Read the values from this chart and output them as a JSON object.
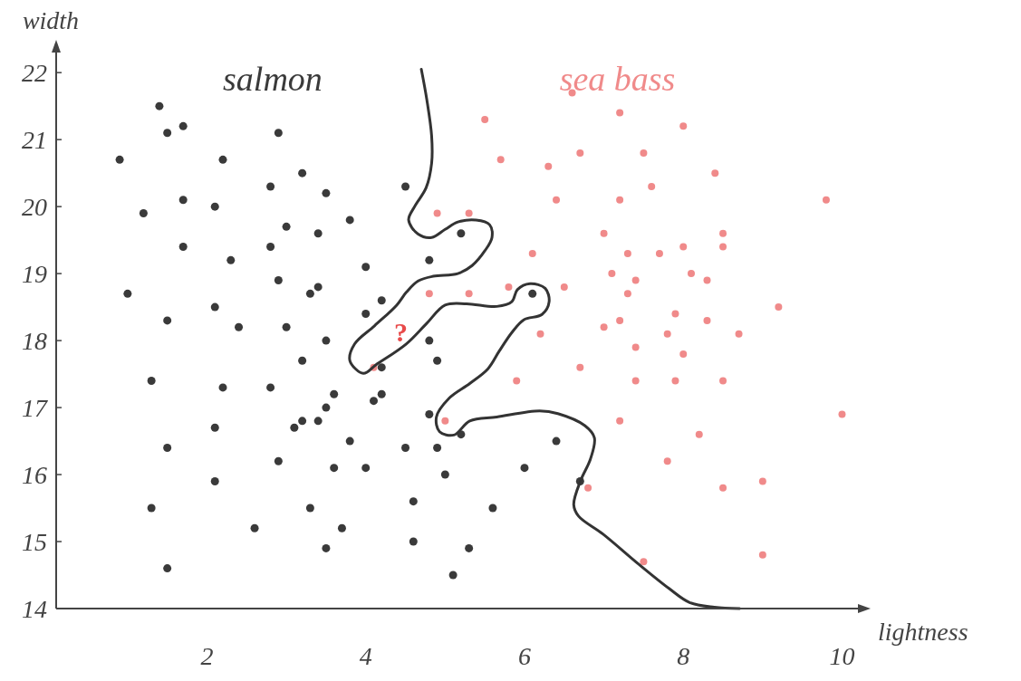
{
  "chart_data": {
    "type": "scatter",
    "xlabel": "lightness",
    "ylabel": "width",
    "xlim": [
      0.1,
      10.2
    ],
    "ylim": [
      14,
      22.3
    ],
    "xticks": [
      2,
      4,
      6,
      8,
      10
    ],
    "yticks": [
      14,
      15,
      16,
      17,
      18,
      19,
      20,
      21,
      22
    ],
    "grid": false,
    "legend": "top",
    "annotations": [
      "?"
    ],
    "series": [
      {
        "name": "salmon",
        "color": "#3a3a3a",
        "marker": "circle",
        "x": [
          1.4,
          1.5,
          1.7,
          2.9,
          0.9,
          2.2,
          3.2,
          2.8,
          3.5,
          4.5,
          1.7,
          1.2,
          2.1,
          3.8,
          3.0,
          3.4,
          1.7,
          2.3,
          2.8,
          4.0,
          4.8,
          2.9,
          3.4,
          3.3,
          4.2,
          1.0,
          1.5,
          2.1,
          2.4,
          3.0,
          4.0,
          3.5,
          4.8,
          5.2,
          6.1,
          1.3,
          2.2,
          2.8,
          3.2,
          4.2,
          4.9,
          4.2,
          4.1,
          3.6,
          3.5,
          3.2,
          3.4,
          3.1,
          4.8,
          4.9,
          4.5,
          3.8,
          2.1,
          1.5,
          2.9,
          3.6,
          4.0,
          5.0,
          2.1,
          4.6,
          3.3,
          1.3,
          2.6,
          3.7,
          4.6,
          3.5,
          1.5,
          5.2,
          6.4,
          6.0,
          6.7,
          5.6,
          5.3,
          5.1
        ],
        "values": [
          21.5,
          21.1,
          21.2,
          21.1,
          20.7,
          20.7,
          20.5,
          20.3,
          20.2,
          20.3,
          20.1,
          19.9,
          20.0,
          19.8,
          19.7,
          19.6,
          19.4,
          19.2,
          19.4,
          19.1,
          19.2,
          18.9,
          18.8,
          18.7,
          18.6,
          18.7,
          18.3,
          18.5,
          18.2,
          18.2,
          18.4,
          18.0,
          18.0,
          19.6,
          18.7,
          17.4,
          17.3,
          17.3,
          17.7,
          17.6,
          17.7,
          17.2,
          17.1,
          17.2,
          17.0,
          16.8,
          16.8,
          16.7,
          16.9,
          16.4,
          16.4,
          16.5,
          16.7,
          16.4,
          16.2,
          16.1,
          16.1,
          16.0,
          15.9,
          15.6,
          15.5,
          15.5,
          15.2,
          15.2,
          15.0,
          14.9,
          14.6,
          16.6,
          16.5,
          16.1,
          15.9,
          15.5,
          14.9,
          14.5
        ]
      },
      {
        "name": "sea bass",
        "color": "#f08a8a",
        "marker": "circle",
        "x": [
          6.6,
          7.2,
          5.5,
          8.0,
          6.7,
          7.5,
          5.7,
          6.3,
          8.4,
          7.6,
          9.8,
          6.4,
          7.2,
          4.9,
          5.3,
          7.0,
          8.5,
          8.0,
          8.5,
          7.7,
          6.1,
          7.3,
          7.1,
          8.1,
          8.3,
          7.4,
          4.8,
          5.3,
          5.8,
          6.5,
          7.3,
          9.2,
          7.9,
          8.3,
          7.2,
          7.0,
          7.8,
          8.7,
          6.2,
          7.4,
          4.1,
          5.0,
          8.0,
          6.7,
          5.9,
          7.4,
          7.9,
          8.5,
          7.2,
          8.2,
          10.0,
          7.8,
          8.5,
          9.0,
          6.8,
          7.5,
          9.0
        ],
        "values": [
          21.7,
          21.4,
          21.3,
          21.2,
          20.8,
          20.8,
          20.7,
          20.6,
          20.5,
          20.3,
          20.1,
          20.1,
          20.1,
          19.9,
          19.9,
          19.6,
          19.6,
          19.4,
          19.4,
          19.3,
          19.3,
          19.3,
          19.0,
          19.0,
          18.9,
          18.9,
          18.7,
          18.7,
          18.8,
          18.8,
          18.7,
          18.5,
          18.4,
          18.3,
          18.3,
          18.2,
          18.1,
          18.1,
          18.1,
          17.9,
          17.6,
          16.8,
          17.8,
          17.6,
          17.4,
          17.4,
          17.4,
          17.4,
          16.8,
          16.6,
          16.9,
          16.2,
          15.8,
          15.9,
          15.8,
          14.7,
          14.8
        ]
      },
      {
        "type": "line",
        "color": "#333333",
        "x": [
          4.7,
          4.77,
          4.83,
          4.83,
          4.76,
          4.62,
          4.54,
          4.66,
          4.83,
          5.0,
          5.16,
          5.39,
          5.56,
          5.59,
          5.5,
          5.34,
          5.16,
          4.85,
          4.66,
          4.51,
          4.39,
          4.11,
          3.86,
          3.8,
          3.97,
          4.13,
          4.51,
          4.77,
          5.0,
          5.27,
          5.65,
          5.84,
          5.91,
          6.07,
          6.26,
          6.31,
          6.22,
          5.99,
          5.84,
          5.68,
          5.54,
          5.31,
          5.05,
          4.89,
          4.93,
          5.11,
          5.31,
          5.65,
          6.19,
          6.42,
          6.76,
          6.88,
          6.83,
          6.71,
          6.62,
          6.68,
          6.99,
          7.44,
          7.82,
          8.08,
          8.39,
          8.71
        ],
        "values": [
          22.05,
          21.59,
          21.05,
          20.65,
          20.28,
          20.01,
          19.8,
          19.59,
          19.54,
          19.66,
          19.77,
          19.8,
          19.73,
          19.54,
          19.34,
          19.12,
          19.0,
          18.96,
          18.89,
          18.72,
          18.53,
          18.22,
          17.95,
          17.7,
          17.51,
          17.64,
          17.95,
          18.26,
          18.53,
          18.55,
          18.51,
          18.58,
          18.76,
          18.85,
          18.78,
          18.58,
          18.39,
          18.31,
          18.12,
          17.84,
          17.58,
          17.36,
          17.14,
          16.86,
          16.64,
          16.59,
          16.8,
          16.86,
          16.95,
          16.91,
          16.73,
          16.55,
          16.23,
          15.92,
          15.55,
          15.38,
          15.11,
          14.66,
          14.3,
          14.09,
          14.02,
          14.0
        ]
      }
    ]
  }
}
